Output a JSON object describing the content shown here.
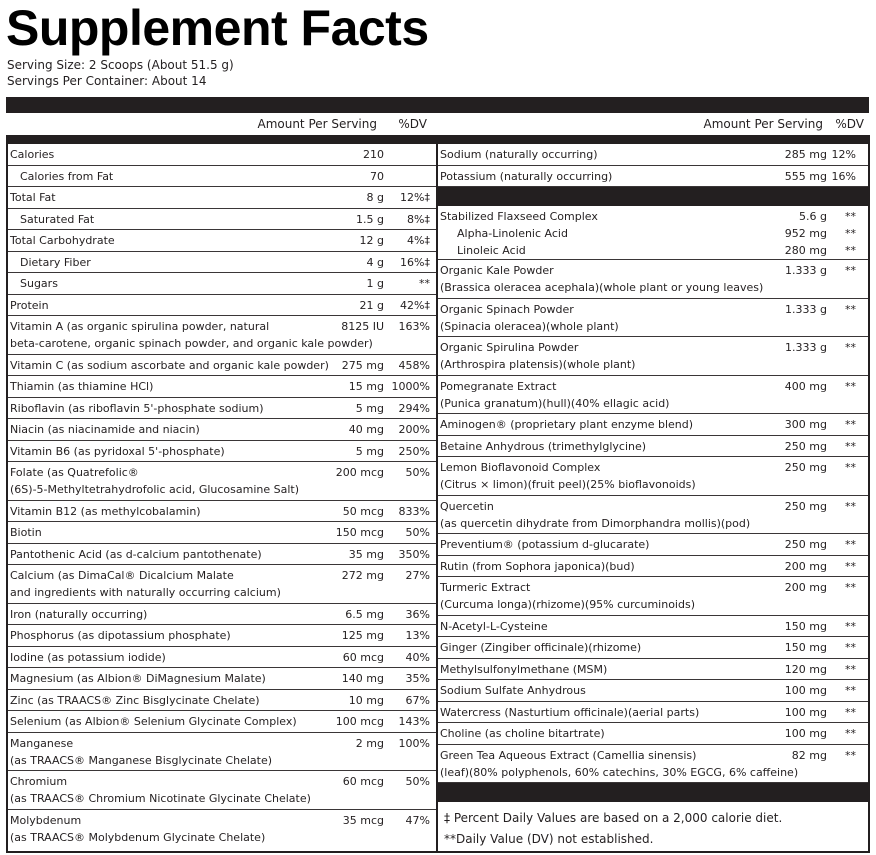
{
  "title": "Supplement Facts",
  "serving_size": "Serving Size: 2 Scoops (About 51.5 g)",
  "servings_per_container": "Servings Per Container: About 14",
  "header": {
    "amount": "Amount Per Serving",
    "dv": "%DV"
  },
  "left_rows": [
    {
      "lines": [
        {
          "text": "Calories",
          "amount": "210",
          "dv": ""
        }
      ]
    },
    {
      "lines": [
        {
          "text": "Calories from Fat",
          "amount": "70",
          "dv": "",
          "indent": 1
        }
      ]
    },
    {
      "lines": [
        {
          "text": "Total Fat",
          "amount": "8 g",
          "dv": "12%‡"
        }
      ]
    },
    {
      "lines": [
        {
          "text": "Saturated Fat",
          "amount": "1.5 g",
          "dv": "8%‡",
          "indent": 1
        }
      ]
    },
    {
      "lines": [
        {
          "text": "Total Carbohydrate",
          "amount": "12 g",
          "dv": "4%‡"
        }
      ]
    },
    {
      "lines": [
        {
          "text": "Dietary Fiber",
          "amount": "4 g",
          "dv": "16%‡",
          "indent": 1
        }
      ]
    },
    {
      "lines": [
        {
          "text": "Sugars",
          "amount": "1 g",
          "dv": "**",
          "indent": 1
        }
      ]
    },
    {
      "lines": [
        {
          "text": "Protein",
          "amount": "21 g",
          "dv": "42%‡"
        }
      ]
    },
    {
      "lines": [
        {
          "text": "Vitamin A (as organic spirulina powder, natural",
          "amount": "8125 IU",
          "dv": "163%"
        },
        {
          "text": "beta-carotene, organic spinach powder, and organic kale powder)"
        }
      ]
    },
    {
      "lines": [
        {
          "text": "Vitamin C (as sodium ascorbate and organic kale powder)",
          "amount": "275 mg",
          "dv": "458%"
        }
      ]
    },
    {
      "lines": [
        {
          "text": "Thiamin (as thiamine HCl)",
          "amount": "15 mg",
          "dv": "1000%"
        }
      ]
    },
    {
      "lines": [
        {
          "text": "Riboflavin (as riboflavin 5'-phosphate sodium)",
          "amount": "5 mg",
          "dv": "294%"
        }
      ]
    },
    {
      "lines": [
        {
          "text": "Niacin (as niacinamide and niacin)",
          "amount": "40 mg",
          "dv": "200%"
        }
      ]
    },
    {
      "lines": [
        {
          "text": "Vitamin B6 (as pyridoxal 5'-phosphate)",
          "amount": "5 mg",
          "dv": "250%"
        }
      ]
    },
    {
      "lines": [
        {
          "text": "Folate (as Quatrefolic®",
          "amount": "200 mcg",
          "dv": "50%"
        },
        {
          "text": "(6S)-5-Methyltetrahydrofolic acid, Glucosamine Salt)"
        }
      ]
    },
    {
      "lines": [
        {
          "text": "Vitamin B12 (as methylcobalamin)",
          "amount": "50 mcg",
          "dv": "833%"
        }
      ]
    },
    {
      "lines": [
        {
          "text": "Biotin",
          "amount": "150 mcg",
          "dv": "50%"
        }
      ]
    },
    {
      "lines": [
        {
          "text": "Pantothenic Acid (as d-calcium pantothenate)",
          "amount": "35 mg",
          "dv": "350%"
        }
      ]
    },
    {
      "lines": [
        {
          "text": "Calcium (as DimaCal® Dicalcium Malate",
          "amount": "272 mg",
          "dv": "27%"
        },
        {
          "text": "and ingredients with naturally occurring calcium)"
        }
      ]
    },
    {
      "lines": [
        {
          "text": "Iron (naturally occurring)",
          "amount": "6.5 mg",
          "dv": "36%"
        }
      ]
    },
    {
      "lines": [
        {
          "text": "Phosphorus (as dipotassium phosphate)",
          "amount": "125 mg",
          "dv": "13%"
        }
      ]
    },
    {
      "lines": [
        {
          "text": "Iodine (as potassium iodide)",
          "amount": "60 mcg",
          "dv": "40%"
        }
      ]
    },
    {
      "lines": [
        {
          "text": "Magnesium (as Albion® DiMagnesium Malate)",
          "amount": "140 mg",
          "dv": "35%"
        }
      ]
    },
    {
      "lines": [
        {
          "text": "Zinc (as TRAACS® Zinc Bisglycinate Chelate)",
          "amount": "10 mg",
          "dv": "67%"
        }
      ]
    },
    {
      "lines": [
        {
          "text": "Selenium (as Albion® Selenium Glycinate Complex)",
          "amount": "100 mcg",
          "dv": "143%"
        }
      ]
    },
    {
      "lines": [
        {
          "text": "Manganese",
          "amount": "2 mg",
          "dv": "100%"
        },
        {
          "text": "(as TRAACS® Manganese Bisglycinate Chelate)"
        }
      ]
    },
    {
      "lines": [
        {
          "text": "Chromium",
          "amount": "60 mcg",
          "dv": "50%"
        },
        {
          "text": "(as TRAACS® Chromium Nicotinate Glycinate Chelate)"
        }
      ]
    },
    {
      "lines": [
        {
          "text": "Molybdenum",
          "amount": "35 mcg",
          "dv": "47%"
        },
        {
          "text": "(as TRAACS® Molybdenum Glycinate Chelate)"
        }
      ]
    }
  ],
  "right_rows": [
    {
      "lines": [
        {
          "text": "Sodium (naturally occurring)",
          "amount": "285 mg",
          "dv": "12%"
        }
      ]
    },
    {
      "lines": [
        {
          "text": "Potassium (naturally occurring)",
          "amount": "555 mg",
          "dv": "16%"
        }
      ]
    },
    {
      "bar": true
    },
    {
      "lines": [
        {
          "text": "Stabilized Flaxseed Complex",
          "amount": "5.6 g",
          "dv": "**"
        },
        {
          "text": "Alpha-Linolenic Acid",
          "amount": "952 mg",
          "dv": "**",
          "indent": 2
        },
        {
          "text": "Linoleic Acid",
          "amount": "280 mg",
          "dv": "**",
          "indent": 2
        }
      ]
    },
    {
      "lines": [
        {
          "text": "Organic Kale Powder",
          "amount": "1.333 g",
          "dv": "**"
        },
        {
          "text": "(Brassica oleracea acephala)(whole plant or young leaves)"
        }
      ]
    },
    {
      "lines": [
        {
          "text": "Organic Spinach Powder",
          "amount": "1.333 g",
          "dv": "**"
        },
        {
          "text": "(Spinacia oleracea)(whole plant)"
        }
      ]
    },
    {
      "lines": [
        {
          "text": "Organic Spirulina Powder",
          "amount": "1.333 g",
          "dv": "**"
        },
        {
          "text": "(Arthrospira platensis)(whole plant)"
        }
      ]
    },
    {
      "lines": [
        {
          "text": "Pomegranate Extract",
          "amount": "400 mg",
          "dv": "**"
        },
        {
          "text": "(Punica granatum)(hull)(40% ellagic acid)"
        }
      ]
    },
    {
      "lines": [
        {
          "text": "Aminogen® (proprietary plant enzyme blend)",
          "amount": "300 mg",
          "dv": "**"
        }
      ]
    },
    {
      "lines": [
        {
          "text": "Betaine Anhydrous (trimethylglycine)",
          "amount": "250 mg",
          "dv": "**"
        }
      ]
    },
    {
      "lines": [
        {
          "text": "Lemon Bioflavonoid Complex",
          "amount": "250 mg",
          "dv": "**"
        },
        {
          "text": "(Citrus × limon)(fruit peel)(25% bioflavonoids)"
        }
      ]
    },
    {
      "lines": [
        {
          "text": "Quercetin",
          "amount": "250 mg",
          "dv": "**"
        },
        {
          "text": "(as quercetin dihydrate from Dimorphandra mollis)(pod)"
        }
      ]
    },
    {
      "lines": [
        {
          "text": "Preventium®  (potassium d-glucarate)",
          "amount": "250 mg",
          "dv": "**"
        }
      ]
    },
    {
      "lines": [
        {
          "text": "Rutin (from Sophora japonica)(bud)",
          "amount": "200 mg",
          "dv": "**"
        }
      ]
    },
    {
      "lines": [
        {
          "text": "Turmeric Extract",
          "amount": "200 mg",
          "dv": "**"
        },
        {
          "text": "(Curcuma longa)(rhizome)(95% curcuminoids)"
        }
      ]
    },
    {
      "lines": [
        {
          "text": "N-Acetyl-L-Cysteine",
          "amount": "150 mg",
          "dv": "**"
        }
      ]
    },
    {
      "lines": [
        {
          "text": "Ginger (Zingiber officinale)(rhizome)",
          "amount": "150 mg",
          "dv": "**"
        }
      ]
    },
    {
      "lines": [
        {
          "text": "Methylsulfonylmethane (MSM)",
          "amount": "120 mg",
          "dv": "**"
        }
      ]
    },
    {
      "lines": [
        {
          "text": "Sodium Sulfate Anhydrous",
          "amount": "100 mg",
          "dv": "**"
        }
      ]
    },
    {
      "lines": [
        {
          "text": "Watercress (Nasturtium officinale)(aerial parts)",
          "amount": "100 mg",
          "dv": "**"
        }
      ]
    },
    {
      "lines": [
        {
          "text": "Choline (as choline bitartrate)",
          "amount": "100 mg",
          "dv": "**"
        }
      ]
    },
    {
      "lines": [
        {
          "text": "Green Tea Aqueous Extract (Camellia sinensis)",
          "amount": "82 mg",
          "dv": "**"
        },
        {
          "text": "(leaf)(80% polyphenols, 60% catechins, 30% EGCG, 6% caffeine)"
        }
      ]
    },
    {
      "bar": true
    }
  ],
  "footnotes": [
    "‡ Percent Daily Values are based on a 2,000 calorie diet.",
    "**Daily Value (DV) not established."
  ]
}
